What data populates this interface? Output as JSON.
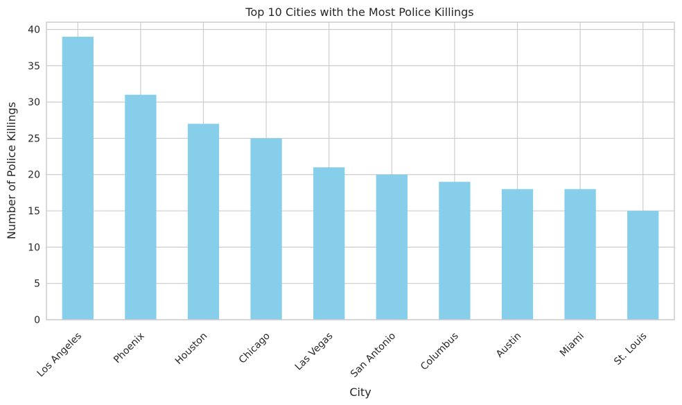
{
  "chart_data": {
    "type": "bar",
    "title": "Top 10 Cities with the Most Police Killings",
    "xlabel": "City",
    "ylabel": "Number of Police Killings",
    "categories": [
      "Los Angeles",
      "Phoenix",
      "Houston",
      "Chicago",
      "Las Vegas",
      "San Antonio",
      "Columbus",
      "Austin",
      "Miami",
      "St. Louis"
    ],
    "values": [
      39,
      31,
      27,
      25,
      21,
      20,
      19,
      18,
      18,
      15
    ],
    "ylim": [
      0,
      41
    ],
    "yticks": [
      0,
      5,
      10,
      15,
      20,
      25,
      30,
      35,
      40
    ],
    "grid": true,
    "bar_color": "#87CEEB",
    "grid_color": "#CCCCCC",
    "spine_color": "#CCCCCC",
    "text_color": "#262626"
  }
}
